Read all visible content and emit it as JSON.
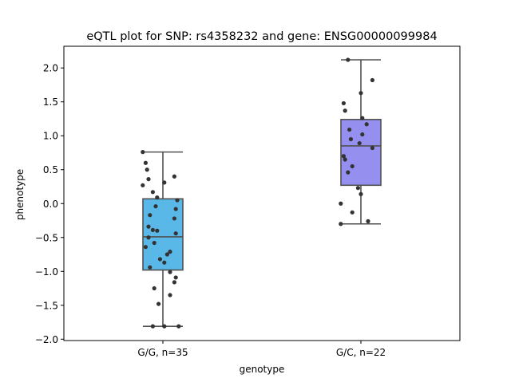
{
  "chart_data": {
    "type": "box",
    "title": "eQTL plot for SNP: rs4358232 and gene: ENSG00000099984",
    "xlabel": "genotype",
    "ylabel": "phenotype",
    "ylim": [
      -2.02,
      2.32
    ],
    "yticks": [
      2.0,
      1.5,
      1.0,
      0.5,
      0.0,
      -0.5,
      -1.0,
      -1.5,
      -2.0
    ],
    "ytick_labels": [
      "2.0",
      "1.5",
      "1.0",
      "0.5",
      "0.0",
      "−0.5",
      "−1.0",
      "−1.5",
      "−2.0"
    ],
    "categories": [
      "G/G, n=35",
      "G/C, n=22"
    ],
    "boxes": [
      {
        "category": "G/G, n=35",
        "color": "#5ab8e8",
        "whisker_low": -1.81,
        "q1": -0.98,
        "median": -0.49,
        "q3": 0.07,
        "whisker_high": 0.76,
        "points": [
          {
            "offset": -0.28,
            "y": 0.76
          },
          {
            "offset": -0.24,
            "y": 0.6
          },
          {
            "offset": -0.22,
            "y": 0.5
          },
          {
            "offset": -0.2,
            "y": 0.36
          },
          {
            "offset": -0.28,
            "y": 0.27
          },
          {
            "offset": -0.14,
            "y": 0.17
          },
          {
            "offset": -0.08,
            "y": 0.09
          },
          {
            "offset": 0.02,
            "y": 0.31
          },
          {
            "offset": 0.16,
            "y": 0.4
          },
          {
            "offset": 0.2,
            "y": 0.05
          },
          {
            "offset": -0.1,
            "y": -0.04
          },
          {
            "offset": 0.18,
            "y": -0.08
          },
          {
            "offset": -0.18,
            "y": -0.17
          },
          {
            "offset": 0.16,
            "y": -0.22
          },
          {
            "offset": -0.2,
            "y": -0.34
          },
          {
            "offset": -0.14,
            "y": -0.39
          },
          {
            "offset": -0.08,
            "y": -0.4
          },
          {
            "offset": 0.18,
            "y": -0.44
          },
          {
            "offset": -0.2,
            "y": -0.5
          },
          {
            "offset": -0.12,
            "y": -0.58
          },
          {
            "offset": -0.24,
            "y": -0.64
          },
          {
            "offset": 0.1,
            "y": -0.71
          },
          {
            "offset": 0.06,
            "y": -0.75
          },
          {
            "offset": -0.04,
            "y": -0.82
          },
          {
            "offset": 0.02,
            "y": -0.87
          },
          {
            "offset": -0.18,
            "y": -0.94
          },
          {
            "offset": 0.1,
            "y": -1.01
          },
          {
            "offset": 0.18,
            "y": -1.09
          },
          {
            "offset": 0.16,
            "y": -1.16
          },
          {
            "offset": -0.12,
            "y": -1.25
          },
          {
            "offset": 0.1,
            "y": -1.35
          },
          {
            "offset": -0.06,
            "y": -1.48
          },
          {
            "offset": -0.14,
            "y": -1.81
          },
          {
            "offset": 0.02,
            "y": -1.81
          },
          {
            "offset": 0.22,
            "y": -1.81
          }
        ]
      },
      {
        "category": "G/C, n=22",
        "color": "#9590f0",
        "whisker_low": -0.3,
        "q1": 0.27,
        "median": 0.85,
        "q3": 1.24,
        "whisker_high": 2.12,
        "points": [
          {
            "offset": -0.18,
            "y": 2.12
          },
          {
            "offset": 0.16,
            "y": 1.82
          },
          {
            "offset": 0.0,
            "y": 1.63
          },
          {
            "offset": -0.24,
            "y": 1.48
          },
          {
            "offset": -0.22,
            "y": 1.37
          },
          {
            "offset": 0.02,
            "y": 1.26
          },
          {
            "offset": 0.08,
            "y": 1.17
          },
          {
            "offset": -0.16,
            "y": 1.09
          },
          {
            "offset": 0.02,
            "y": 1.02
          },
          {
            "offset": -0.14,
            "y": 0.95
          },
          {
            "offset": -0.02,
            "y": 0.89
          },
          {
            "offset": 0.16,
            "y": 0.82
          },
          {
            "offset": -0.24,
            "y": 0.7
          },
          {
            "offset": -0.22,
            "y": 0.65
          },
          {
            "offset": -0.12,
            "y": 0.55
          },
          {
            "offset": -0.18,
            "y": 0.46
          },
          {
            "offset": -0.04,
            "y": 0.23
          },
          {
            "offset": 0.0,
            "y": 0.14
          },
          {
            "offset": -0.28,
            "y": 0.0
          },
          {
            "offset": -0.12,
            "y": -0.13
          },
          {
            "offset": 0.1,
            "y": -0.26
          },
          {
            "offset": -0.28,
            "y": -0.3
          }
        ]
      }
    ],
    "box_edge_color": "#505050",
    "point_color": "#333333",
    "grid": false
  }
}
